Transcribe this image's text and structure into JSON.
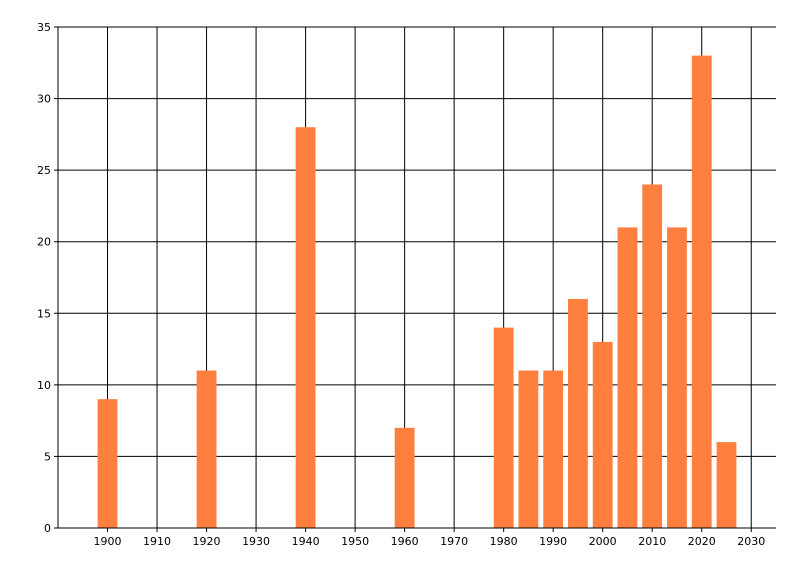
{
  "chart_data": {
    "type": "bar",
    "x": [
      1900,
      1920,
      1940,
      1960,
      1980,
      1985,
      1990,
      1995,
      2000,
      2005,
      2010,
      2015,
      2020,
      2025
    ],
    "values": [
      9,
      11,
      28,
      7,
      14,
      11,
      11,
      16,
      13,
      21,
      24,
      21,
      33,
      6
    ],
    "title": "",
    "xlabel": "",
    "ylabel": "",
    "xlim": [
      1890,
      2035
    ],
    "ylim": [
      0,
      35
    ],
    "xticks": [
      "1900",
      "1910",
      "1920",
      "1930",
      "1940",
      "1950",
      "1960",
      "1970",
      "1980",
      "1990",
      "2000",
      "2010",
      "2020",
      "2030"
    ],
    "yticks": [
      "0",
      "5",
      "10",
      "15",
      "20",
      "25",
      "30",
      "35"
    ],
    "grid": true,
    "bar_color": "#ff7f3f",
    "grid_color": "#000000"
  }
}
